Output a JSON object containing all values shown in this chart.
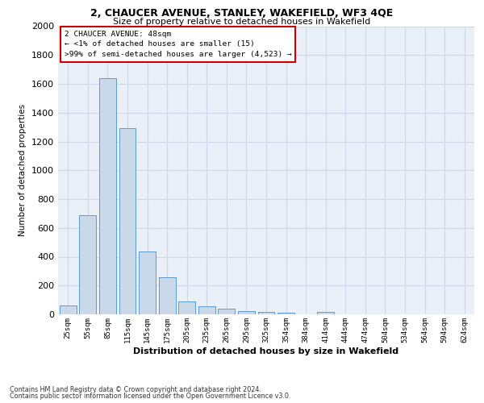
{
  "title1": "2, CHAUCER AVENUE, STANLEY, WAKEFIELD, WF3 4QE",
  "title2": "Size of property relative to detached houses in Wakefield",
  "xlabel": "Distribution of detached houses by size in Wakefield",
  "ylabel": "Number of detached properties",
  "categories": [
    "25sqm",
    "55sqm",
    "85sqm",
    "115sqm",
    "145sqm",
    "175sqm",
    "205sqm",
    "235sqm",
    "265sqm",
    "295sqm",
    "325sqm",
    "354sqm",
    "384sqm",
    "414sqm",
    "444sqm",
    "474sqm",
    "504sqm",
    "534sqm",
    "564sqm",
    "594sqm",
    "624sqm"
  ],
  "values": [
    60,
    690,
    1640,
    1290,
    435,
    255,
    90,
    55,
    40,
    22,
    18,
    12,
    0,
    18,
    0,
    0,
    0,
    0,
    0,
    0,
    0
  ],
  "bar_color": "#c9d9ea",
  "bar_edge_color": "#5b9bd5",
  "grid_color": "#d0d8e8",
  "background_color": "#eaf0f8",
  "annotation_box_color": "#cc0000",
  "annotation_text_line1": "2 CHAUCER AVENUE: 48sqm",
  "annotation_text_line2": "← <1% of detached houses are smaller (15)",
  "annotation_text_line3": ">99% of semi-detached houses are larger (4,523) →",
  "ylim": [
    0,
    2000
  ],
  "yticks": [
    0,
    200,
    400,
    600,
    800,
    1000,
    1200,
    1400,
    1600,
    1800,
    2000
  ],
  "footer_line1": "Contains HM Land Registry data © Crown copyright and database right 2024.",
  "footer_line2": "Contains public sector information licensed under the Open Government Licence v3.0."
}
